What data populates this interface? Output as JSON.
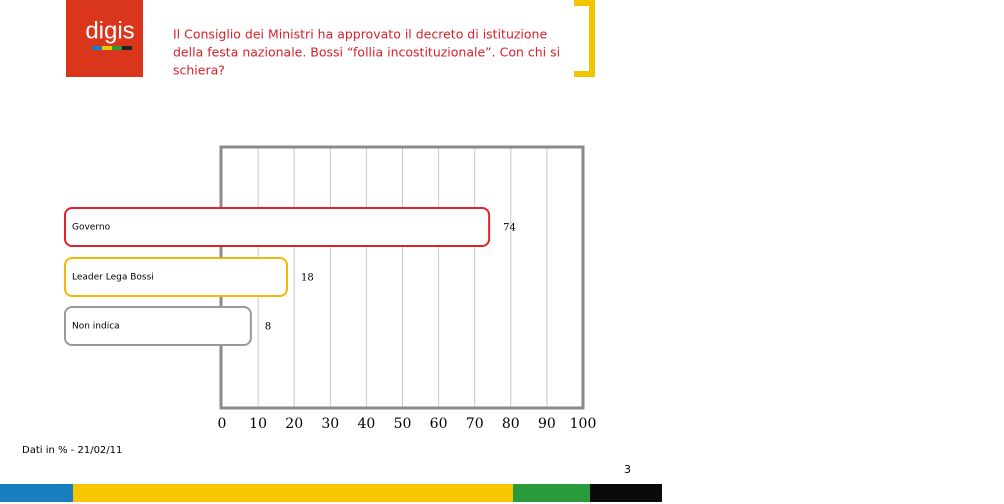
{
  "header": {
    "logo": "digis",
    "title_lines": [
      "Il Consiglio dei Ministri ha approvato il decreto di istituzione",
      "della festa nazionale. Bossi “follia incostituzionale”. Con chi si",
      "schiera?"
    ]
  },
  "chart_data": {
    "type": "bar",
    "orientation": "horizontal",
    "categories": [
      "Governo",
      "Leader Lega Bossi",
      "Non indica"
    ],
    "values": [
      74,
      18,
      8
    ],
    "colors": [
      "#e0222c",
      "#f2b705",
      "#9a9a9a"
    ],
    "xlim": [
      0,
      100
    ],
    "xticks": [
      0,
      10,
      20,
      30,
      40,
      50,
      60,
      70,
      80,
      90,
      100
    ],
    "grid": true
  },
  "footnote": "Dati in % - 21/02/11",
  "page_number": "3"
}
